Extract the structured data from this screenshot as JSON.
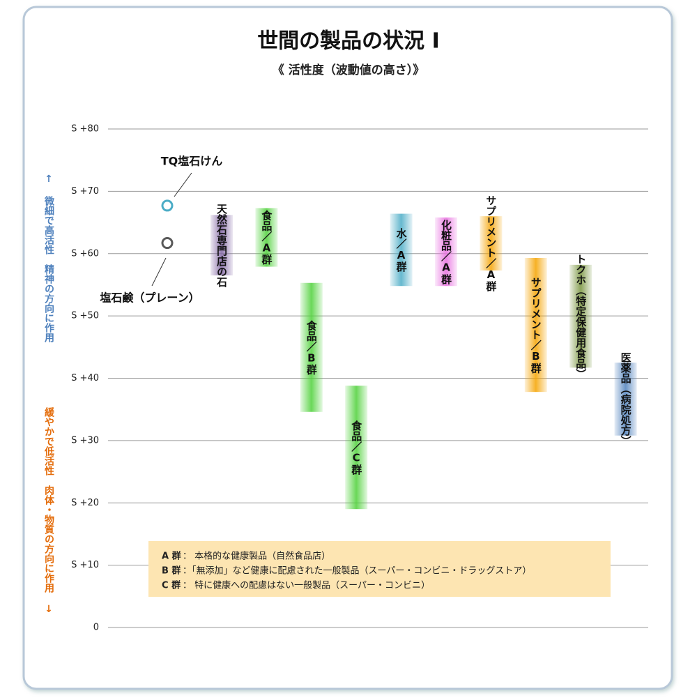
{
  "chart_data": {
    "type": "range-bar",
    "title": "世間の製品の状況 Ⅰ",
    "subtitle": "《 活性度（波動値の高さ）》",
    "y_label_top": "↑ 微細で高活性　精神の方向に作用",
    "y_label_bottom": "緩やかで低活性　肉体・物質の方向に作用 ↓",
    "ylim": [
      0,
      80
    ],
    "yticks": [
      0,
      {
        "value": 10,
        "label": "S +10"
      },
      {
        "value": 20,
        "label": "S +20"
      },
      {
        "value": 30,
        "label": "S +30"
      },
      {
        "value": 40,
        "label": "S +40"
      },
      {
        "value": 50,
        "label": "S +50"
      },
      {
        "value": 60,
        "label": "S +60"
      },
      {
        "value": 70,
        "label": "S +70"
      },
      {
        "value": 80,
        "label": "S +80"
      }
    ],
    "grid": true,
    "points": [
      {
        "name": "TQ塩石けん",
        "color": "#4bacc6",
        "value": 67.7
      },
      {
        "name": "塩石鹸（プレーン）",
        "color": "#595959",
        "value": 61.7
      }
    ],
    "bars": [
      {
        "name": "天然石専門店の石",
        "color": "#8064a2",
        "low": 56.5,
        "high": 66.2
      },
      {
        "name": "食品／A群",
        "color": "#4fd13a",
        "low": 57.9,
        "high": 67.3
      },
      {
        "name": "食品／B群",
        "color": "#4fd13a",
        "low": 34.6,
        "high": 55.3
      },
      {
        "name": "食品／C群",
        "color": "#4fd13a",
        "low": 19.0,
        "high": 38.8
      },
      {
        "name": "水／A群",
        "color": "#4bacc6",
        "low": 54.8,
        "high": 66.4
      },
      {
        "name": "化粧品／A群",
        "color": "#e86ee0",
        "low": 54.8,
        "high": 65.8
      },
      {
        "name": "サプリメント／A群",
        "color": "#f5a300",
        "low": 57.3,
        "high": 66.0
      },
      {
        "name": "サプリメント／B群",
        "color": "#f5a300",
        "low": 37.8,
        "high": 59.3
      },
      {
        "name": "トクホ（特定保健用食品）",
        "color": "#77933c",
        "low": 41.7,
        "high": 58.2
      },
      {
        "name": "医薬品（病院処方）",
        "color": "#4f81bd",
        "low": 30.8,
        "high": 42.5
      }
    ],
    "notes": [
      {
        "key": "A 群",
        "text": "： 本格的な健康製品（自然食品店）"
      },
      {
        "key": "B 群",
        "text": "：「無添加」など健康に配慮された一般製品（スーパー・コンビニ・ドラッグストア）"
      },
      {
        "key": "C 群",
        "text": "： 特に健康への配慮はない一般製品（スーパー・コンビニ）"
      }
    ]
  }
}
